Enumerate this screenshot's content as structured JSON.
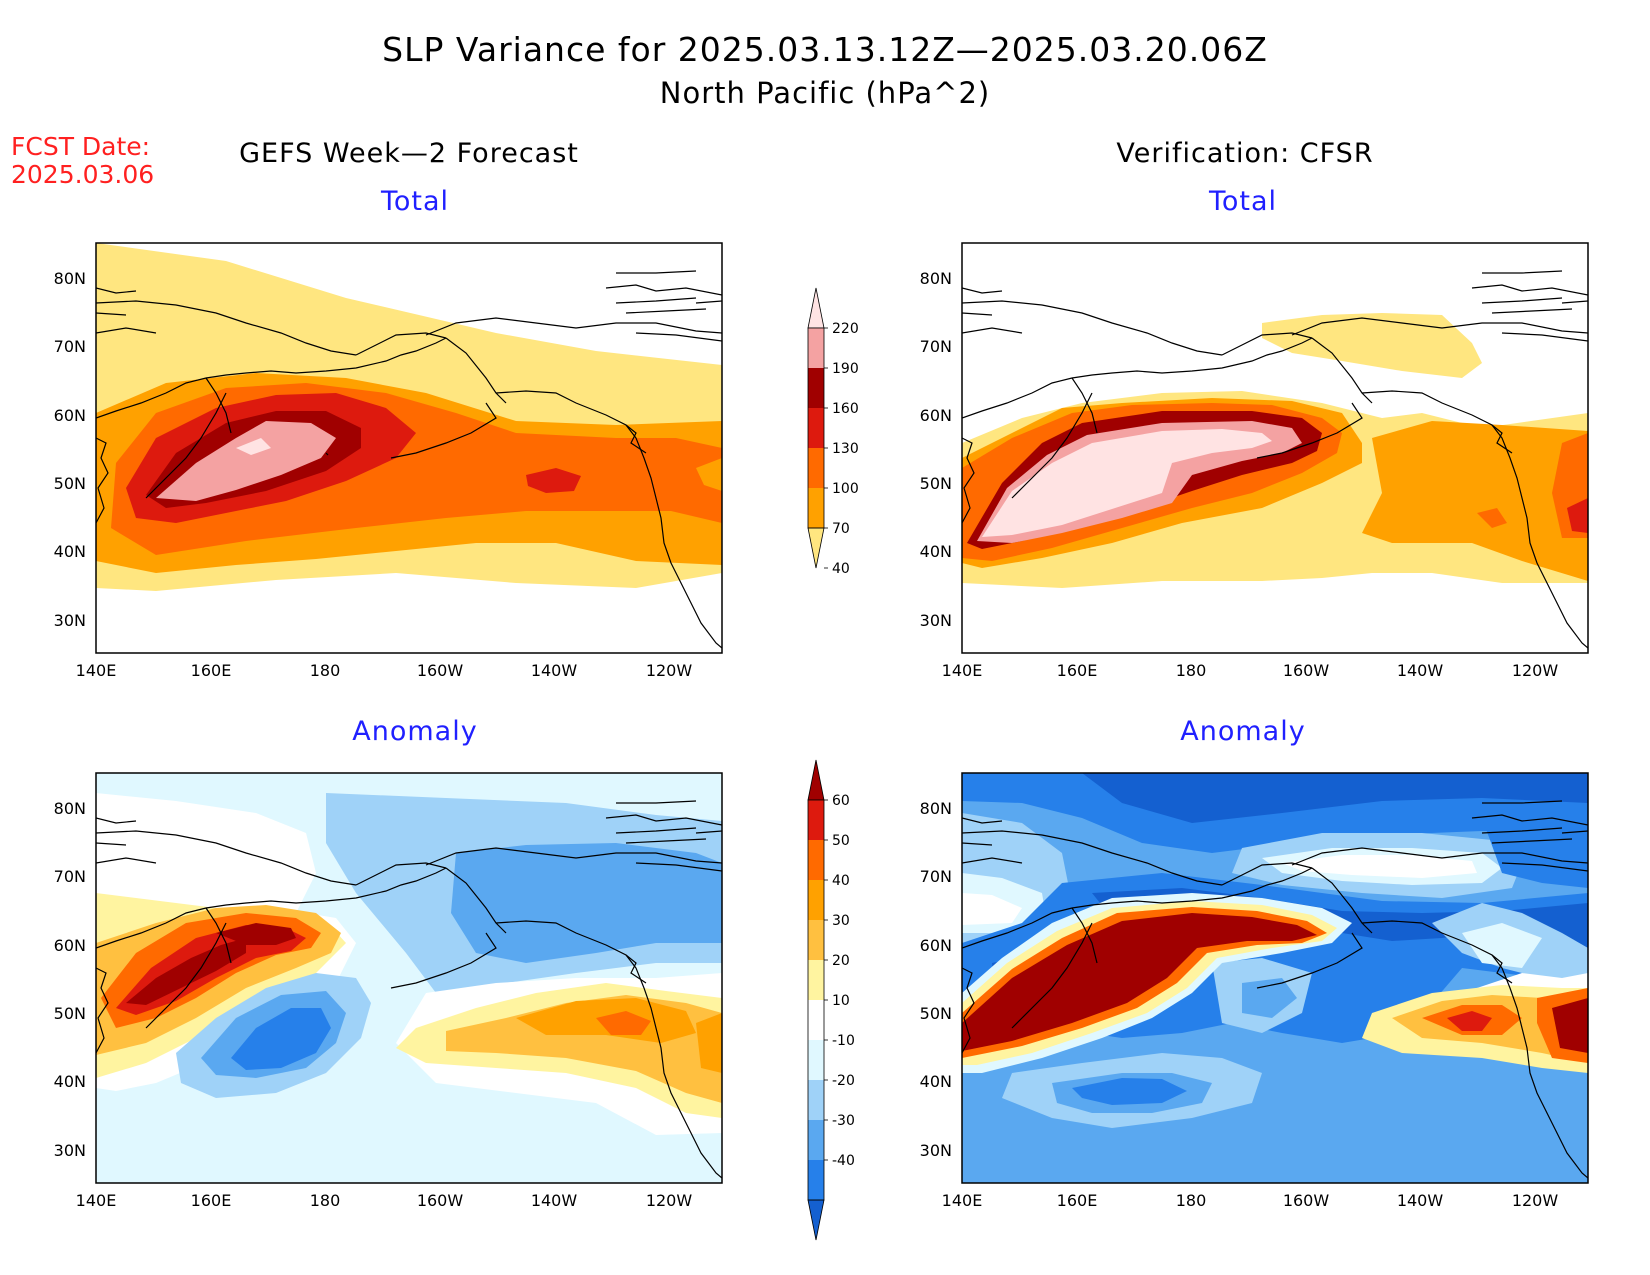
{
  "header": {
    "title_line1": "SLP Variance for 2025.03.13.12Z—2025.03.20.06Z",
    "title_line2": "North Pacific (hPa^2)",
    "fcst_label": "FCST Date:",
    "fcst_date": "2025.03.06"
  },
  "columns": {
    "left_title": "GEFS Week—2 Forecast",
    "right_title": "Verification: CFSR"
  },
  "panels": [
    {
      "id": "gefs-total",
      "title": "Total"
    },
    {
      "id": "cfsr-total",
      "title": "Total"
    },
    {
      "id": "gefs-anomaly",
      "title": "Anomaly"
    },
    {
      "id": "cfsr-anomaly",
      "title": "Anomaly"
    }
  ],
  "axes": {
    "lon_labels": [
      "140E",
      "160E",
      "180",
      "160W",
      "140W",
      "120W"
    ],
    "lat_labels": [
      "80N",
      "70N",
      "60N",
      "50N",
      "40N",
      "30N"
    ]
  },
  "colorbars": {
    "total": {
      "labels": [
        "220",
        "190",
        "160",
        "130",
        "100",
        "70",
        "40"
      ],
      "colors": [
        "#ffe3e3",
        "#f4a2a2",
        "#a00000",
        "#dd1a0e",
        "#ff6a00",
        "#ffa100",
        "#ffe680"
      ]
    },
    "anomaly": {
      "labels": [
        "60",
        "50",
        "40",
        "30",
        "20",
        "10",
        "-10",
        "-20",
        "-30",
        "-40"
      ],
      "colors": [
        "#a00000",
        "#dd1a0e",
        "#ff6a00",
        "#ffa100",
        "#ffc040",
        "#fff4a0",
        "#ffffff",
        "#e0f8ff",
        "#9fd2f8",
        "#5aa8f0",
        "#2680ea",
        "#1460d0"
      ]
    }
  }
}
